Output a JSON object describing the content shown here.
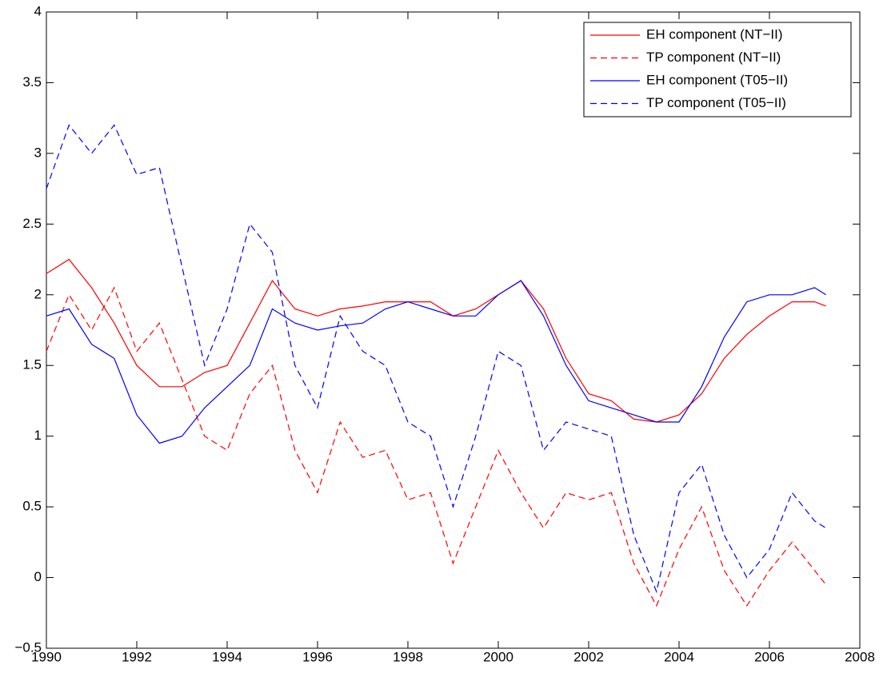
{
  "chart_data": {
    "type": "line",
    "x": [
      1990,
      1990.5,
      1991,
      1991.5,
      1992,
      1992.5,
      1993,
      1993.5,
      1994,
      1994.5,
      1995,
      1995.5,
      1996,
      1996.5,
      1997,
      1997.5,
      1998,
      1998.5,
      1999,
      1999.5,
      2000,
      2000.5,
      2001,
      2001.5,
      2002,
      2002.5,
      2003,
      2003.5,
      2004,
      2004.5,
      2005,
      2005.5,
      2006,
      2006.5,
      2007,
      2007.25
    ],
    "series": [
      {
        "name": "EH component (NT−II)",
        "color": "#ff0000",
        "style": "solid",
        "values": [
          2.15,
          2.25,
          2.05,
          1.8,
          1.5,
          1.35,
          1.35,
          1.45,
          1.5,
          1.8,
          2.1,
          1.9,
          1.85,
          1.9,
          1.92,
          1.95,
          1.95,
          1.95,
          1.85,
          1.9,
          2.0,
          2.1,
          1.9,
          1.55,
          1.3,
          1.25,
          1.12,
          1.1,
          1.15,
          1.3,
          1.55,
          1.72,
          1.85,
          1.95,
          1.95,
          1.92
        ]
      },
      {
        "name": "TP component (NT−II)",
        "color": "#ff0000",
        "style": "dashed",
        "values": [
          1.6,
          2.0,
          1.75,
          2.05,
          1.6,
          1.8,
          1.4,
          1.0,
          0.9,
          1.3,
          1.5,
          0.9,
          0.6,
          1.1,
          0.85,
          0.9,
          0.55,
          0.6,
          0.1,
          0.5,
          0.9,
          0.6,
          0.35,
          0.6,
          0.55,
          0.6,
          0.1,
          -0.2,
          0.2,
          0.5,
          0.05,
          -0.2,
          0.05,
          0.25,
          0.05,
          -0.05
        ]
      },
      {
        "name": "EH component (T05−II)",
        "color": "#0000ff",
        "style": "solid",
        "values": [
          1.85,
          1.9,
          1.65,
          1.55,
          1.15,
          0.95,
          1.0,
          1.2,
          1.35,
          1.5,
          1.9,
          1.8,
          1.75,
          1.78,
          1.8,
          1.9,
          1.95,
          1.9,
          1.85,
          1.85,
          2.0,
          2.1,
          1.85,
          1.5,
          1.25,
          1.2,
          1.15,
          1.1,
          1.1,
          1.35,
          1.7,
          1.95,
          2.0,
          2.0,
          2.05,
          2.0
        ]
      },
      {
        "name": "TP component (T05−II)",
        "color": "#0000ff",
        "style": "dashed",
        "values": [
          2.75,
          3.2,
          3.0,
          3.2,
          2.85,
          2.9,
          2.2,
          1.5,
          1.9,
          2.5,
          2.3,
          1.5,
          1.2,
          1.85,
          1.6,
          1.5,
          1.1,
          1.0,
          0.5,
          1.0,
          1.6,
          1.5,
          0.9,
          1.1,
          1.05,
          1.0,
          0.3,
          -0.1,
          0.6,
          0.8,
          0.3,
          0.0,
          0.2,
          0.6,
          0.4,
          0.35
        ]
      }
    ],
    "xlim": [
      1990,
      2008
    ],
    "xticks": [
      1990,
      1992,
      1994,
      1996,
      1998,
      2000,
      2002,
      2004,
      2006,
      2008
    ],
    "ylim": [
      -0.5,
      4
    ],
    "yticks": [
      {
        "value": -0.5,
        "label": "−0.5"
      },
      0,
      0.5,
      1,
      1.5,
      2,
      2.5,
      3,
      3.5,
      4
    ],
    "legend": "top-right"
  }
}
